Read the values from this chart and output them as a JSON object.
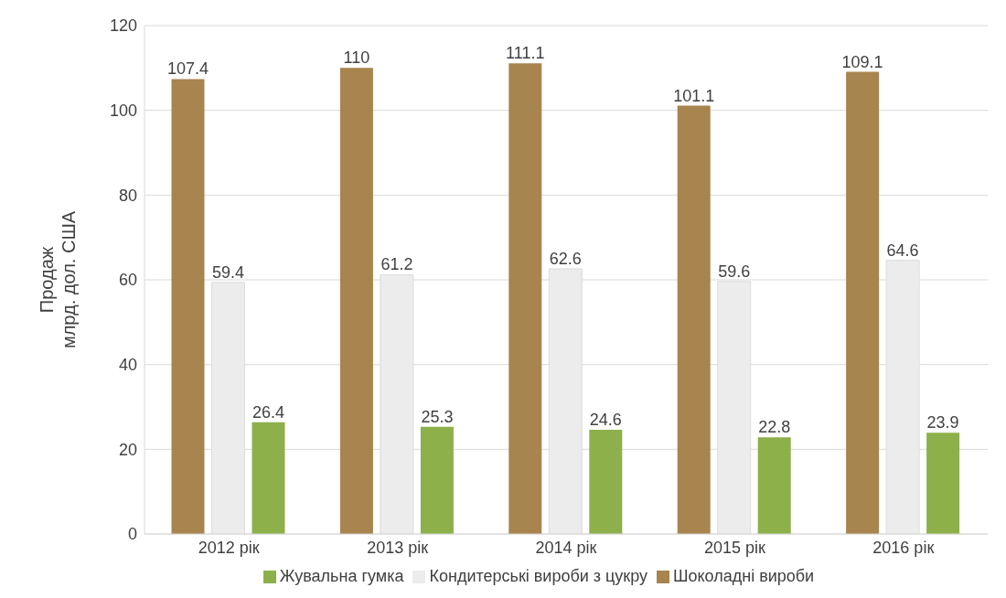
{
  "chart_data": {
    "type": "bar",
    "ylabel": "Продаж\nмлрд. дол. США",
    "categories": [
      "2012 рік",
      "2013 рік",
      "2014 рік",
      "2015 рік",
      "2016 рік"
    ],
    "series": [
      {
        "name": "Шоколадні  вироби",
        "color": "#a8844e",
        "values": [
          107.4,
          110,
          111.1,
          101.1,
          109.1
        ]
      },
      {
        "name": "Кондитерські вироби з цукру",
        "color": "#ececec",
        "values": [
          59.4,
          61.2,
          62.6,
          59.6,
          64.6
        ]
      },
      {
        "name": "Жувальна гумка",
        "color": "#8db04b",
        "values": [
          26.4,
          25.3,
          24.6,
          22.8,
          23.9
        ]
      }
    ],
    "ylim": [
      0,
      120
    ],
    "yticks": [
      0,
      20,
      40,
      60,
      80,
      100,
      120
    ],
    "grid": "y",
    "legend": "bottom",
    "data_labels": true
  }
}
